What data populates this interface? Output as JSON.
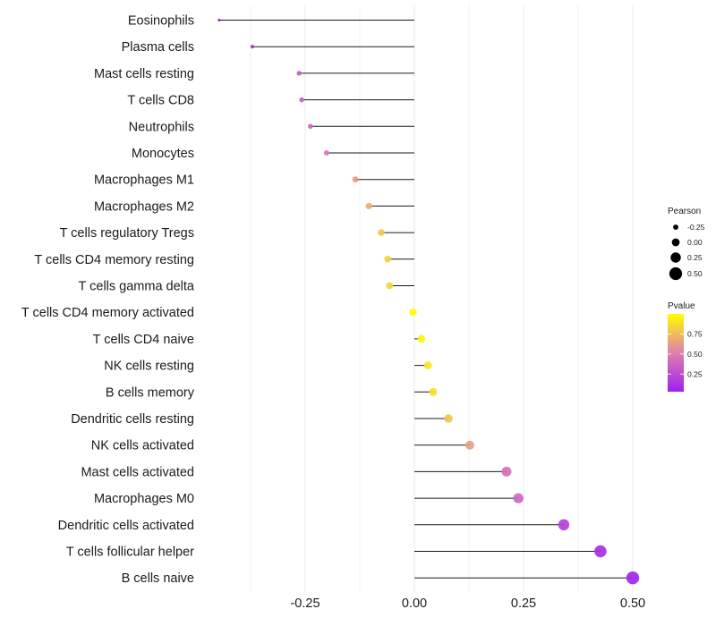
{
  "chart_data": {
    "type": "lollipop",
    "title": "",
    "xlabel": "",
    "ylabel": "",
    "xlim": [
      -0.49,
      0.53
    ],
    "x_ticks": [
      -0.25,
      0.0,
      0.25,
      0.5
    ],
    "x_tick_labels": [
      "-0.25",
      "0.00",
      "0.25",
      "0.50"
    ],
    "x_minor_grid": [
      -0.375,
      -0.125,
      0.125,
      0.375
    ],
    "grid": true,
    "baseline": 0,
    "categories": [
      "Eosinophils",
      "Plasma cells",
      "Mast cells resting",
      "T cells CD8",
      "Neutrophils",
      "Monocytes",
      "Macrophages M1",
      "Macrophages M2",
      "T cells regulatory  Tregs ",
      "T cells CD4 memory resting",
      "T cells gamma delta",
      "T cells CD4 memory activated",
      "T cells CD4 naive",
      "NK cells resting",
      "B cells memory",
      "Dendritic cells resting",
      "NK cells activated",
      "Mast cells activated",
      "Macrophages M0",
      "Dendritic cells activated",
      "T cells follicular helper",
      "B cells naive"
    ],
    "series": [
      {
        "name": "Pearson",
        "values": [
          -0.447,
          -0.371,
          -0.264,
          -0.258,
          -0.238,
          -0.201,
          -0.135,
          -0.104,
          -0.076,
          -0.061,
          -0.057,
          -0.003,
          0.016,
          0.031,
          0.043,
          0.078,
          0.127,
          0.211,
          0.238,
          0.342,
          0.426,
          0.5
        ]
      },
      {
        "name": "Pvalue",
        "values": [
          0.04,
          0.1,
          0.33,
          0.34,
          0.39,
          0.47,
          0.62,
          0.71,
          0.79,
          0.83,
          0.84,
          0.99,
          0.95,
          0.91,
          0.88,
          0.78,
          0.64,
          0.44,
          0.39,
          0.2,
          0.1,
          0.05
        ]
      }
    ],
    "legend": {
      "placement": "right",
      "size_legend": {
        "title": "Pearson",
        "entries": [
          "-0.25",
          "0.00",
          "0.25",
          "0.50"
        ],
        "values": [
          -0.25,
          0.0,
          0.25,
          0.5
        ]
      },
      "color_legend": {
        "title": "Pvalue",
        "tick_labels": [
          "0.75",
          "0.50",
          "0.25"
        ],
        "ticks": [
          0.75,
          0.5,
          0.25
        ],
        "range": [
          0.03,
          1.0
        ],
        "low_color": "#A020F0",
        "high_color": "#FFFF00"
      }
    },
    "colors": {
      "stem": "#1a1a1a",
      "grid": "#ebebeb",
      "text": "#1a1a1a"
    }
  }
}
